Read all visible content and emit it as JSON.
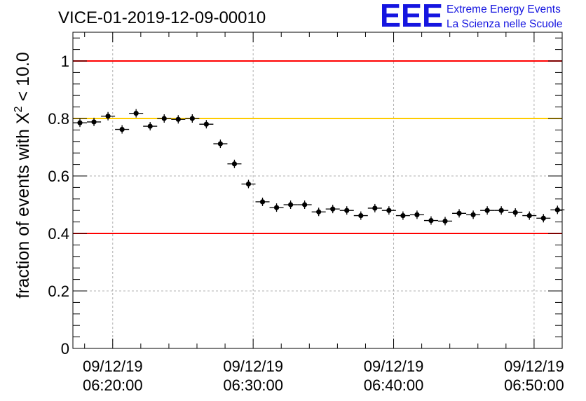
{
  "logo": {
    "mark": "EEE",
    "line1": "Extreme Energy Events",
    "line2": "La Scienza nelle Scuole",
    "color": "#1515e0"
  },
  "chart_data": {
    "type": "scatter",
    "title": "VICE-01-2019-12-09-00010",
    "ylabel": "fraction of events with X² < 10.0",
    "ylabel_parts": {
      "prefix": "fraction of events with X",
      "superscript": "2",
      "suffix": " < 10.0"
    },
    "xlabel": "",
    "ylim": [
      0,
      1.1
    ],
    "y_ticks": [
      {
        "value": 0,
        "label": "0"
      },
      {
        "value": 0.2,
        "label": "0.2"
      },
      {
        "value": 0.4,
        "label": "0.4"
      },
      {
        "value": 0.6,
        "label": "0.6"
      },
      {
        "value": 0.8,
        "label": "0.8"
      },
      {
        "value": 1,
        "label": "1"
      }
    ],
    "xlim": [
      "2019-12-09 06:17:10",
      "2019-12-09 06:52:00"
    ],
    "x_ticks": [
      {
        "value": "2019-12-09 06:20:00",
        "date": "09/12/19",
        "time": "06:20:00"
      },
      {
        "value": "2019-12-09 06:30:00",
        "date": "09/12/19",
        "time": "06:30:00"
      },
      {
        "value": "2019-12-09 06:40:00",
        "date": "09/12/19",
        "time": "06:40:00"
      },
      {
        "value": "2019-12-09 06:50:00",
        "date": "09/12/19",
        "time": "06:50:00"
      }
    ],
    "grid": true,
    "reference_lines": [
      {
        "y": 1.0,
        "color": "#ff0000"
      },
      {
        "y": 0.8,
        "color": "#ffcc00"
      },
      {
        "y": 0.4,
        "color": "#ff0000"
      }
    ],
    "marker_color": "#000000",
    "points": [
      {
        "x": "2019-12-09 06:17:40",
        "y": 0.785
      },
      {
        "x": "2019-12-09 06:18:40",
        "y": 0.788
      },
      {
        "x": "2019-12-09 06:19:40",
        "y": 0.808
      },
      {
        "x": "2019-12-09 06:20:40",
        "y": 0.762
      },
      {
        "x": "2019-12-09 06:21:40",
        "y": 0.818
      },
      {
        "x": "2019-12-09 06:22:40",
        "y": 0.773
      },
      {
        "x": "2019-12-09 06:23:40",
        "y": 0.8
      },
      {
        "x": "2019-12-09 06:24:40",
        "y": 0.797
      },
      {
        "x": "2019-12-09 06:25:40",
        "y": 0.8
      },
      {
        "x": "2019-12-09 06:26:40",
        "y": 0.78
      },
      {
        "x": "2019-12-09 06:27:40",
        "y": 0.712
      },
      {
        "x": "2019-12-09 06:28:40",
        "y": 0.642
      },
      {
        "x": "2019-12-09 06:29:40",
        "y": 0.572
      },
      {
        "x": "2019-12-09 06:30:40",
        "y": 0.51
      },
      {
        "x": "2019-12-09 06:31:40",
        "y": 0.49
      },
      {
        "x": "2019-12-09 06:32:40",
        "y": 0.5
      },
      {
        "x": "2019-12-09 06:33:40",
        "y": 0.5
      },
      {
        "x": "2019-12-09 06:34:40",
        "y": 0.475
      },
      {
        "x": "2019-12-09 06:35:40",
        "y": 0.485
      },
      {
        "x": "2019-12-09 06:36:40",
        "y": 0.48
      },
      {
        "x": "2019-12-09 06:37:40",
        "y": 0.462
      },
      {
        "x": "2019-12-09 06:38:40",
        "y": 0.488
      },
      {
        "x": "2019-12-09 06:39:40",
        "y": 0.48
      },
      {
        "x": "2019-12-09 06:40:40",
        "y": 0.462
      },
      {
        "x": "2019-12-09 06:41:40",
        "y": 0.465
      },
      {
        "x": "2019-12-09 06:42:40",
        "y": 0.445
      },
      {
        "x": "2019-12-09 06:43:40",
        "y": 0.443
      },
      {
        "x": "2019-12-09 06:44:40",
        "y": 0.47
      },
      {
        "x": "2019-12-09 06:45:40",
        "y": 0.465
      },
      {
        "x": "2019-12-09 06:46:40",
        "y": 0.48
      },
      {
        "x": "2019-12-09 06:47:40",
        "y": 0.48
      },
      {
        "x": "2019-12-09 06:48:40",
        "y": 0.473
      },
      {
        "x": "2019-12-09 06:49:40",
        "y": 0.462
      },
      {
        "x": "2019-12-09 06:50:40",
        "y": 0.453
      },
      {
        "x": "2019-12-09 06:51:40",
        "y": 0.482
      }
    ]
  }
}
